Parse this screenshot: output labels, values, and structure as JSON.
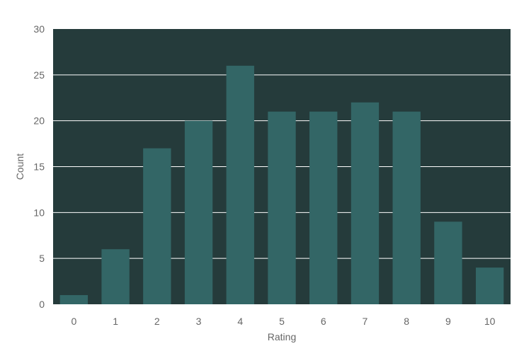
{
  "chart_data": {
    "type": "bar",
    "title": "",
    "xlabel": "Rating",
    "ylabel": "Count",
    "categories": [
      "0",
      "1",
      "2",
      "3",
      "4",
      "5",
      "6",
      "7",
      "8",
      "9",
      "10"
    ],
    "values": [
      1,
      6,
      17,
      20,
      26,
      21,
      21,
      22,
      21,
      9,
      4
    ],
    "ylim": [
      0,
      30
    ],
    "yticks": [
      "0",
      "5",
      "10",
      "15",
      "20",
      "25",
      "30"
    ],
    "grid": true,
    "colors": {
      "plot_background": "#253b3b",
      "bar": "#336666",
      "grid": "#ffffff",
      "text": "#666666"
    }
  }
}
